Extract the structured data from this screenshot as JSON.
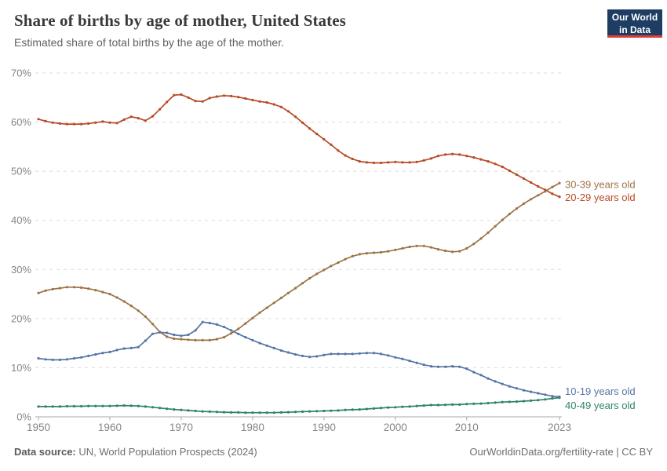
{
  "header": {
    "title": "Share of births by age of mother, United States",
    "subtitle": "Estimated share of total births by the age of the mother."
  },
  "logo": {
    "line1": "Our World",
    "line2": "in Data"
  },
  "chart_data": {
    "type": "line",
    "title": "Share of births by age of mother, United States",
    "grid": "horizontal-dashed",
    "legend_position": "right-end-labels",
    "ylim": [
      0,
      70
    ],
    "y_ticks": [
      0,
      10,
      20,
      30,
      40,
      50,
      60,
      70
    ],
    "y_tick_suffix": "%",
    "x_ticks": [
      1950,
      1960,
      1970,
      1980,
      1990,
      2000,
      2010,
      2023
    ],
    "years": [
      1950,
      1951,
      1952,
      1953,
      1954,
      1955,
      1956,
      1957,
      1958,
      1959,
      1960,
      1961,
      1962,
      1963,
      1964,
      1965,
      1966,
      1967,
      1968,
      1969,
      1970,
      1971,
      1972,
      1973,
      1974,
      1975,
      1976,
      1977,
      1978,
      1979,
      1980,
      1981,
      1982,
      1983,
      1984,
      1985,
      1986,
      1987,
      1988,
      1989,
      1990,
      1991,
      1992,
      1993,
      1994,
      1995,
      1996,
      1997,
      1998,
      1999,
      2000,
      2001,
      2002,
      2003,
      2004,
      2005,
      2006,
      2007,
      2008,
      2009,
      2010,
      2011,
      2012,
      2013,
      2014,
      2015,
      2016,
      2017,
      2018,
      2019,
      2020,
      2021,
      2022,
      2023
    ],
    "series": [
      {
        "id": "20-29",
        "name": "20-29 years old",
        "color": "#B64A26",
        "label_dy": 1,
        "values": [
          60.6,
          60.2,
          59.9,
          59.7,
          59.6,
          59.6,
          59.6,
          59.7,
          59.9,
          60.1,
          59.9,
          59.8,
          60.5,
          61.1,
          60.8,
          60.3,
          61.2,
          62.6,
          64.1,
          65.5,
          65.6,
          65.0,
          64.3,
          64.2,
          64.9,
          65.2,
          65.4,
          65.3,
          65.1,
          64.8,
          64.5,
          64.2,
          64.0,
          63.6,
          63.1,
          62.2,
          61.1,
          59.9,
          58.7,
          57.6,
          56.5,
          55.4,
          54.2,
          53.2,
          52.5,
          52.0,
          51.8,
          51.7,
          51.7,
          51.8,
          51.9,
          51.8,
          51.8,
          51.9,
          52.2,
          52.6,
          53.1,
          53.4,
          53.5,
          53.4,
          53.1,
          52.8,
          52.4,
          52.0,
          51.5,
          50.9,
          50.1,
          49.3,
          48.5,
          47.7,
          46.9,
          46.2,
          45.4,
          44.8
        ]
      },
      {
        "id": "30-39",
        "name": "30-39 years old",
        "color": "#9C7345",
        "label_dy": 2,
        "values": [
          25.2,
          25.7,
          26.0,
          26.2,
          26.4,
          26.4,
          26.3,
          26.1,
          25.8,
          25.4,
          25.0,
          24.3,
          23.5,
          22.6,
          21.6,
          20.4,
          18.9,
          17.3,
          16.3,
          15.9,
          15.8,
          15.7,
          15.6,
          15.6,
          15.6,
          15.8,
          16.2,
          17.0,
          17.9,
          19.0,
          20.1,
          21.2,
          22.2,
          23.2,
          24.2,
          25.2,
          26.2,
          27.2,
          28.2,
          29.1,
          29.9,
          30.7,
          31.4,
          32.1,
          32.7,
          33.1,
          33.3,
          33.4,
          33.5,
          33.7,
          34.0,
          34.3,
          34.6,
          34.8,
          34.8,
          34.5,
          34.1,
          33.8,
          33.6,
          33.7,
          34.3,
          35.2,
          36.3,
          37.5,
          38.8,
          40.1,
          41.3,
          42.4,
          43.4,
          44.3,
          45.1,
          45.9,
          46.8,
          47.6
        ]
      },
      {
        "id": "40-49",
        "name": "40-49 years old",
        "color": "#2D8465",
        "label_dy": 10,
        "values": [
          2.1,
          2.1,
          2.1,
          2.1,
          2.15,
          2.15,
          2.15,
          2.2,
          2.2,
          2.2,
          2.2,
          2.25,
          2.3,
          2.25,
          2.2,
          2.1,
          1.95,
          1.8,
          1.65,
          1.5,
          1.4,
          1.3,
          1.2,
          1.1,
          1.05,
          1.0,
          0.95,
          0.9,
          0.9,
          0.85,
          0.85,
          0.85,
          0.85,
          0.85,
          0.9,
          0.95,
          1.0,
          1.05,
          1.1,
          1.15,
          1.2,
          1.25,
          1.3,
          1.4,
          1.45,
          1.5,
          1.6,
          1.7,
          1.8,
          1.9,
          1.95,
          2.05,
          2.1,
          2.2,
          2.3,
          2.4,
          2.4,
          2.45,
          2.5,
          2.5,
          2.6,
          2.65,
          2.7,
          2.8,
          2.9,
          3.0,
          3.05,
          3.1,
          3.2,
          3.3,
          3.4,
          3.55,
          3.75,
          3.9
        ]
      },
      {
        "id": "10-19",
        "name": "10-19 years old",
        "color": "#5574A6",
        "label_dy": -7,
        "values": [
          11.9,
          11.7,
          11.6,
          11.6,
          11.7,
          11.9,
          12.1,
          12.4,
          12.7,
          13.0,
          13.2,
          13.6,
          13.9,
          14.0,
          14.2,
          15.5,
          16.9,
          17.2,
          17.1,
          16.7,
          16.5,
          16.7,
          17.6,
          19.3,
          19.1,
          18.8,
          18.3,
          17.6,
          16.9,
          16.2,
          15.6,
          15.0,
          14.5,
          14.0,
          13.5,
          13.1,
          12.7,
          12.4,
          12.2,
          12.3,
          12.6,
          12.8,
          12.8,
          12.8,
          12.8,
          12.9,
          13.0,
          13.0,
          12.8,
          12.5,
          12.1,
          11.8,
          11.4,
          11.0,
          10.6,
          10.3,
          10.2,
          10.2,
          10.3,
          10.2,
          9.8,
          9.1,
          8.5,
          7.8,
          7.2,
          6.7,
          6.2,
          5.8,
          5.4,
          5.1,
          4.8,
          4.5,
          4.2,
          4.1
        ]
      }
    ]
  },
  "footer": {
    "source_label": "Data source:",
    "source_text": "UN, World Population Prospects (2024)",
    "right_text": "OurWorldinData.org/fertility-rate | CC BY"
  }
}
